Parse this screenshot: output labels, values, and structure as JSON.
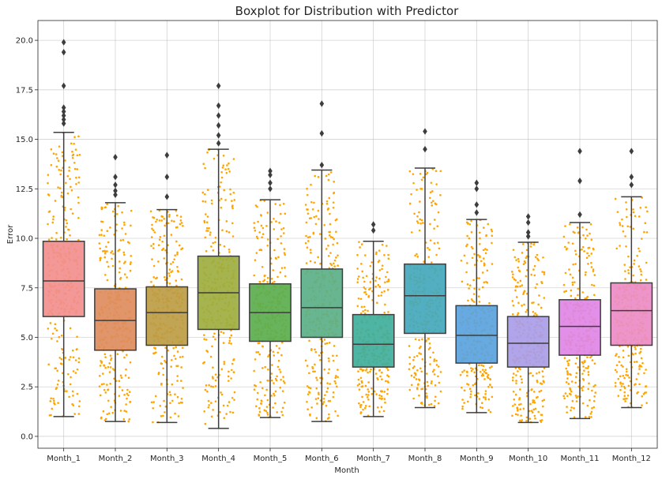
{
  "chart_data": {
    "type": "boxplot",
    "title": "Boxplot for Distribution with Predictor",
    "xlabel": "Month",
    "ylabel": "Error",
    "ylim": [
      -0.6,
      21.0
    ],
    "yticks": [
      "0.0",
      "2.5",
      "5.0",
      "7.5",
      "10.0",
      "12.5",
      "15.0",
      "17.5",
      "20.0"
    ],
    "grid": true,
    "jitter_point_color": "#FFA500",
    "categories": [
      "Month_1",
      "Month_2",
      "Month_3",
      "Month_4",
      "Month_5",
      "Month_6",
      "Month_7",
      "Month_8",
      "Month_9",
      "Month_10",
      "Month_11",
      "Month_12"
    ],
    "boxes": [
      {
        "color": "#F28E8E",
        "whisker_low": 1.0,
        "q1": 6.05,
        "median": 7.85,
        "q3": 9.85,
        "whisker_high": 15.35,
        "outliers": [
          15.8,
          16.0,
          16.2,
          16.4,
          16.6,
          17.7,
          19.4,
          19.9
        ]
      },
      {
        "color": "#DE8C5E",
        "whisker_low": 0.75,
        "q1": 4.35,
        "median": 5.85,
        "q3": 7.45,
        "whisker_high": 11.8,
        "outliers": [
          12.2,
          12.4,
          12.7,
          13.1,
          14.1
        ]
      },
      {
        "color": "#BC9C45",
        "whisker_low": 0.7,
        "q1": 4.6,
        "median": 6.25,
        "q3": 7.55,
        "whisker_high": 11.45,
        "outliers": [
          12.1,
          13.1,
          14.2
        ]
      },
      {
        "color": "#9DAE3F",
        "whisker_low": 0.4,
        "q1": 5.4,
        "median": 7.25,
        "q3": 9.1,
        "whisker_high": 14.5,
        "outliers": [
          14.8,
          15.2,
          15.7,
          16.2,
          16.7,
          17.7
        ]
      },
      {
        "color": "#5AAE4F",
        "whisker_low": 0.95,
        "q1": 4.8,
        "median": 6.25,
        "q3": 7.7,
        "whisker_high": 11.95,
        "outliers": [
          12.5,
          12.8,
          13.2,
          13.4
        ]
      },
      {
        "color": "#5BB088",
        "whisker_low": 0.75,
        "q1": 5.0,
        "median": 6.5,
        "q3": 8.45,
        "whisker_high": 13.45,
        "outliers": [
          13.7,
          15.3,
          16.8
        ]
      },
      {
        "color": "#3FAE9C",
        "whisker_low": 1.0,
        "q1": 3.5,
        "median": 4.65,
        "q3": 6.15,
        "whisker_high": 9.85,
        "outliers": [
          10.4,
          10.7
        ]
      },
      {
        "color": "#43A8BC",
        "whisker_low": 1.45,
        "q1": 5.2,
        "median": 7.1,
        "q3": 8.7,
        "whisker_high": 13.55,
        "outliers": [
          14.5,
          15.4
        ]
      },
      {
        "color": "#5AA3E0",
        "whisker_low": 1.2,
        "q1": 3.7,
        "median": 5.1,
        "q3": 6.6,
        "whisker_high": 10.95,
        "outliers": [
          11.3,
          11.7,
          12.5,
          12.8
        ]
      },
      {
        "color": "#A99CE8",
        "whisker_low": 0.7,
        "q1": 3.5,
        "median": 4.7,
        "q3": 6.05,
        "whisker_high": 9.8,
        "outliers": [
          10.1,
          10.3,
          10.8,
          11.1
        ]
      },
      {
        "color": "#DE86E6",
        "whisker_low": 0.9,
        "q1": 4.1,
        "median": 5.55,
        "q3": 6.9,
        "whisker_high": 10.8,
        "outliers": [
          11.2,
          12.9,
          14.4
        ]
      },
      {
        "color": "#EC8CC6",
        "whisker_low": 1.45,
        "q1": 4.6,
        "median": 6.35,
        "q3": 7.75,
        "whisker_high": 12.1,
        "outliers": [
          12.7,
          13.1,
          14.4
        ]
      }
    ]
  }
}
